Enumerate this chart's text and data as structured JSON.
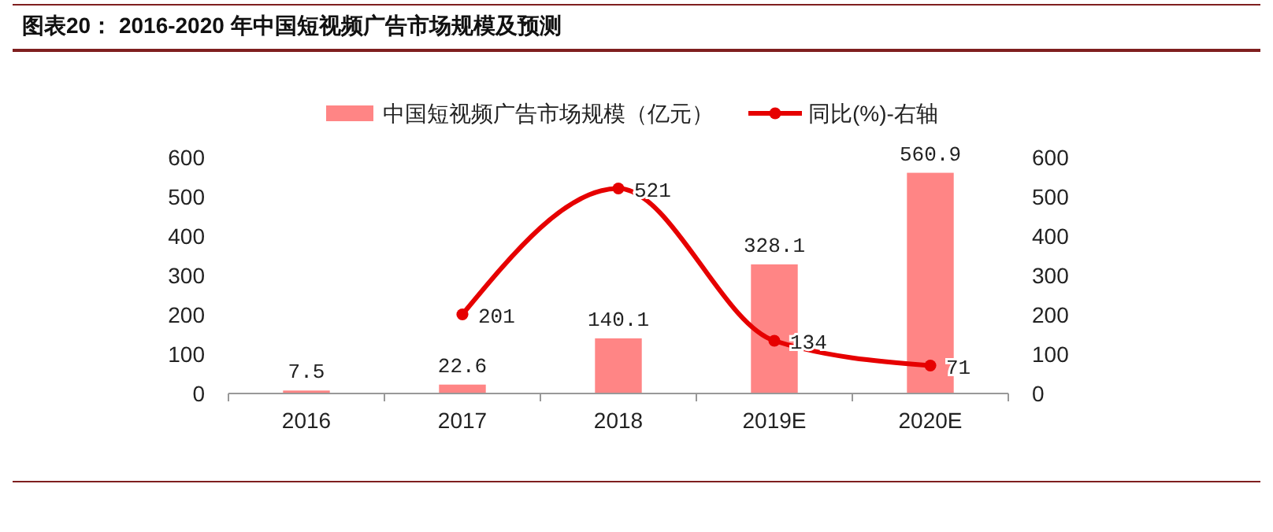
{
  "chart_data": {
    "type": "bar",
    "title": "图表20：  2016-2020 年中国短视频广告市场规模及预测",
    "categories": [
      "2016",
      "2017",
      "2018",
      "2019E",
      "2020E"
    ],
    "series": [
      {
        "name": "中国短视频广告市场规模（亿元）",
        "color": "#ff8585",
        "values": [
          7.5,
          22.6,
          140.1,
          328.1,
          560.9
        ]
      },
      {
        "name": "同比(%)-右轴",
        "type": "line",
        "axis": "y2",
        "color": "#e60000",
        "values": [
          null,
          201,
          521,
          134,
          71
        ]
      }
    ],
    "ylim": [
      0,
      600
    ],
    "yticks": [
      0,
      100,
      200,
      300,
      400,
      500,
      600
    ],
    "y2lim": [
      0,
      600
    ],
    "y2ticks": [
      0,
      100,
      200,
      300,
      400,
      500,
      600
    ],
    "data_labels": true,
    "legend": "top",
    "grid": false,
    "marker": "circle"
  }
}
